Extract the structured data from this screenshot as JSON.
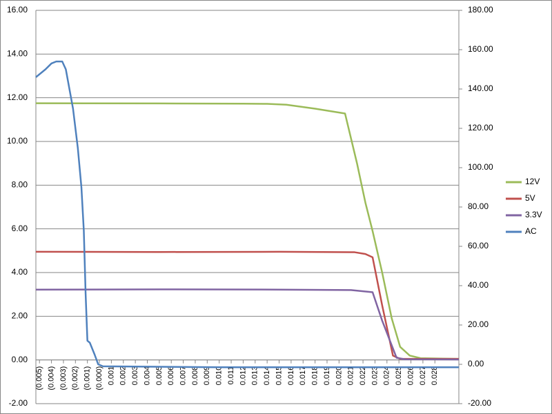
{
  "chart_data": {
    "type": "line",
    "xlim": [
      -0.0053,
      0.03
    ],
    "xticks": [
      {
        "value": -0.005,
        "label": "(0.005)"
      },
      {
        "value": -0.004,
        "label": "(0.004)"
      },
      {
        "value": -0.003,
        "label": "(0.003)"
      },
      {
        "value": -0.002,
        "label": "(0.002)"
      },
      {
        "value": -0.001,
        "label": "(0.001)"
      },
      {
        "value": 0.0,
        "label": "(0.000)"
      },
      {
        "value": 0.001,
        "label": "0.001"
      },
      {
        "value": 0.002,
        "label": "0.002"
      },
      {
        "value": 0.003,
        "label": "0.003"
      },
      {
        "value": 0.004,
        "label": "0.004"
      },
      {
        "value": 0.005,
        "label": "0.005"
      },
      {
        "value": 0.006,
        "label": "0.006"
      },
      {
        "value": 0.007,
        "label": "0.007"
      },
      {
        "value": 0.008,
        "label": "0.008"
      },
      {
        "value": 0.009,
        "label": "0.009"
      },
      {
        "value": 0.01,
        "label": "0.010"
      },
      {
        "value": 0.011,
        "label": "0.011"
      },
      {
        "value": 0.012,
        "label": "0.012"
      },
      {
        "value": 0.013,
        "label": "0.013"
      },
      {
        "value": 0.014,
        "label": "0.014"
      },
      {
        "value": 0.015,
        "label": "0.015"
      },
      {
        "value": 0.016,
        "label": "0.016"
      },
      {
        "value": 0.017,
        "label": "0.017"
      },
      {
        "value": 0.018,
        "label": "0.018"
      },
      {
        "value": 0.019,
        "label": "0.019"
      },
      {
        "value": 0.02,
        "label": "0.020"
      },
      {
        "value": 0.021,
        "label": "0.021"
      },
      {
        "value": 0.022,
        "label": "0.022"
      },
      {
        "value": 0.023,
        "label": "0.023"
      },
      {
        "value": 0.024,
        "label": "0.024"
      },
      {
        "value": 0.025,
        "label": "0.025"
      },
      {
        "value": 0.026,
        "label": "0.026"
      },
      {
        "value": 0.027,
        "label": "0.027"
      },
      {
        "value": 0.028,
        "label": "0.028"
      }
    ],
    "ylim": [
      -2,
      16
    ],
    "yticks": [
      {
        "value": -2,
        "label": "-2.00"
      },
      {
        "value": 0,
        "label": "0.00"
      },
      {
        "value": 2,
        "label": "2.00"
      },
      {
        "value": 4,
        "label": "4.00"
      },
      {
        "value": 6,
        "label": "6.00"
      },
      {
        "value": 8,
        "label": "8.00"
      },
      {
        "value": 10,
        "label": "10.00"
      },
      {
        "value": 12,
        "label": "12.00"
      },
      {
        "value": 14,
        "label": "14.00"
      },
      {
        "value": 16,
        "label": "16.00"
      }
    ],
    "y2lim": [
      -20,
      180
    ],
    "y2ticks": [
      {
        "value": -20,
        "label": "-20.00"
      },
      {
        "value": 0,
        "label": "0.00"
      },
      {
        "value": 20,
        "label": "20.00"
      },
      {
        "value": 40,
        "label": "40.00"
      },
      {
        "value": 60,
        "label": "60.00"
      },
      {
        "value": 80,
        "label": "80.00"
      },
      {
        "value": 100,
        "label": "100.00"
      },
      {
        "value": 120,
        "label": "120.00"
      },
      {
        "value": 140,
        "label": "140.00"
      },
      {
        "value": 160,
        "label": "160.00"
      },
      {
        "value": 180,
        "label": "180.00"
      }
    ],
    "grid": true,
    "legend": "right",
    "series": [
      {
        "name": "12V",
        "color": "#9bbb59",
        "x": [
          -0.0053,
          0.005,
          0.012,
          0.014,
          0.0156,
          0.018,
          0.0205,
          0.0215,
          0.0222,
          0.0228,
          0.0236,
          0.0244,
          0.0251,
          0.0259,
          0.0268,
          0.03
        ],
        "values": [
          11.75,
          11.74,
          11.73,
          11.72,
          11.68,
          11.5,
          11.28,
          9.0,
          7.2,
          5.9,
          4.0,
          1.9,
          0.6,
          0.2,
          0.08,
          0.05
        ]
      },
      {
        "name": "5V",
        "color": "#c0504d",
        "x": [
          -0.0053,
          0.005,
          0.015,
          0.0213,
          0.0222,
          0.0228,
          0.0236,
          0.0245,
          0.0251,
          0.03
        ],
        "values": [
          4.95,
          4.94,
          4.95,
          4.93,
          4.85,
          4.7,
          2.5,
          0.2,
          0.05,
          0.05
        ]
      },
      {
        "name": "3.3V",
        "color": "#8064a2",
        "x": [
          -0.0053,
          0.005,
          0.015,
          0.021,
          0.0228,
          0.0236,
          0.0248,
          0.0255,
          0.03
        ],
        "values": [
          3.22,
          3.23,
          3.22,
          3.2,
          3.1,
          1.8,
          0.1,
          0.03,
          0.02
        ]
      },
      {
        "name": "AC",
        "color": "#4f81bd",
        "axis": "y2",
        "x": [
          -0.0053,
          -0.0045,
          -0.004,
          -0.0036,
          -0.0031,
          -0.0028,
          -0.0022,
          -0.0018,
          -0.0015,
          -0.0013,
          -0.00115,
          -0.001,
          -0.0008,
          -0.0004,
          -0.0001,
          0.0003,
          0.01,
          0.03
        ],
        "values": [
          146,
          150,
          153,
          154,
          154,
          150,
          130,
          110,
          90,
          68,
          36,
          12,
          11,
          5,
          0,
          -1,
          -1.5,
          -1.5
        ]
      }
    ]
  }
}
